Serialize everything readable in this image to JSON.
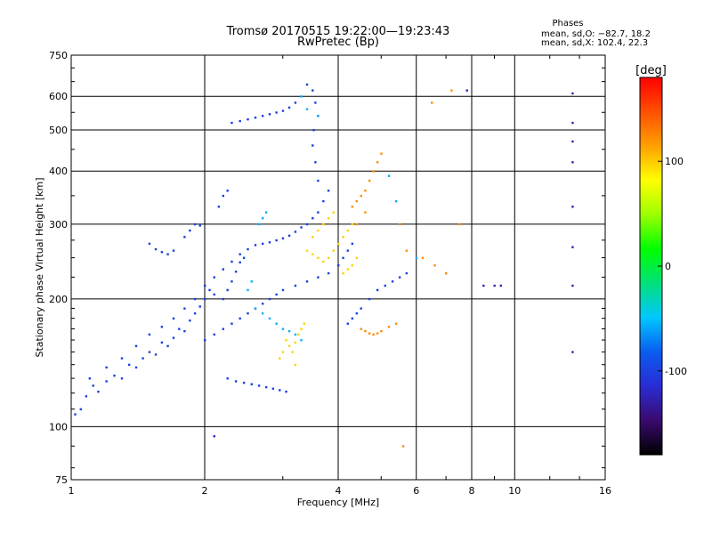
{
  "header": {
    "title": "Tromsø 20170515 19:22:00—19:23:43",
    "subtitle": "RwPretec (Bp)",
    "stats_heading": "Phases",
    "stats_o": "mean, sd,O: −82.7, 18.2",
    "stats_x": "mean, sd,X: 102.4, 22.3"
  },
  "chart_data": {
    "type": "scatter",
    "title": "Tromsø 20170515 19:22:00—19:23:43",
    "subtitle": "RwPretec (Bp)",
    "xlabel": "Frequency [MHz]",
    "ylabel": "Stationary phase Virtual Height [km]",
    "x_scale": "log",
    "y_scale": "log",
    "xlim": [
      1,
      16
    ],
    "ylim": [
      75,
      750
    ],
    "x_ticks": [
      1,
      2,
      4,
      6,
      8,
      10,
      16
    ],
    "x_tick_labels": [
      "1",
      "2",
      "4",
      "6",
      "8",
      "10",
      "16"
    ],
    "y_ticks": [
      75,
      100,
      200,
      300,
      400,
      500,
      600,
      750
    ],
    "y_tick_labels": [
      "75",
      "100",
      "200",
      "300",
      "400",
      "500",
      "600",
      "750"
    ],
    "grid": true,
    "colorbar": {
      "label": "[deg]",
      "range": [
        -180,
        180
      ],
      "ticks": [
        100,
        0,
        -100
      ],
      "tick_labels": [
        "100",
        "0",
        "-100"
      ],
      "colors": [
        "#000000",
        "#3a0a6e",
        "#2a2cd4",
        "#0a5cf0",
        "#00c8ff",
        "#00e07a",
        "#00ff00",
        "#9cff00",
        "#ffff00",
        "#ffa000",
        "#ff5000",
        "#ff0000"
      ]
    },
    "series": [
      {
        "color": "#1a3fe0",
        "values": [
          [
            1.02,
            107
          ],
          [
            1.05,
            110
          ],
          [
            1.08,
            118
          ],
          [
            1.12,
            125
          ],
          [
            1.15,
            121
          ],
          [
            1.2,
            128
          ],
          [
            1.25,
            132
          ],
          [
            1.3,
            130
          ],
          [
            1.35,
            140
          ],
          [
            1.4,
            138
          ],
          [
            1.45,
            145
          ],
          [
            1.5,
            150
          ],
          [
            1.55,
            148
          ],
          [
            1.6,
            158
          ],
          [
            1.65,
            155
          ],
          [
            1.7,
            162
          ],
          [
            1.75,
            170
          ],
          [
            1.8,
            168
          ],
          [
            1.85,
            178
          ],
          [
            1.9,
            185
          ],
          [
            1.95,
            192
          ],
          [
            2.0,
            200
          ],
          [
            2.05,
            210
          ],
          [
            2.1,
            205
          ],
          [
            1.1,
            130
          ],
          [
            1.2,
            138
          ],
          [
            1.3,
            145
          ],
          [
            1.4,
            155
          ],
          [
            1.5,
            165
          ],
          [
            1.6,
            172
          ],
          [
            1.7,
            180
          ],
          [
            1.8,
            190
          ],
          [
            1.9,
            200
          ],
          [
            2.0,
            215
          ],
          [
            2.1,
            225
          ],
          [
            2.2,
            235
          ],
          [
            2.3,
            245
          ],
          [
            2.4,
            255
          ],
          [
            2.5,
            262
          ],
          [
            2.6,
            268
          ],
          [
            2.7,
            270
          ],
          [
            2.8,
            272
          ],
          [
            2.9,
            275
          ],
          [
            3.0,
            278
          ],
          [
            3.1,
            282
          ],
          [
            3.2,
            288
          ],
          [
            3.3,
            295
          ],
          [
            3.4,
            300
          ],
          [
            3.5,
            310
          ],
          [
            3.6,
            320
          ],
          [
            3.7,
            340
          ],
          [
            3.8,
            360
          ],
          [
            3.6,
            380
          ],
          [
            3.55,
            420
          ],
          [
            3.5,
            460
          ],
          [
            3.52,
            500
          ],
          [
            3.6,
            540
          ],
          [
            3.55,
            580
          ],
          [
            3.5,
            620
          ],
          [
            3.4,
            640
          ],
          [
            2.3,
            520
          ],
          [
            2.4,
            525
          ],
          [
            2.5,
            530
          ],
          [
            2.6,
            535
          ],
          [
            2.7,
            540
          ],
          [
            2.8,
            545
          ],
          [
            2.9,
            550
          ],
          [
            3.0,
            555
          ],
          [
            3.1,
            565
          ],
          [
            3.2,
            580
          ],
          [
            2.25,
            130
          ],
          [
            2.35,
            128
          ],
          [
            2.45,
            127
          ],
          [
            2.55,
            126
          ],
          [
            2.65,
            125
          ],
          [
            2.75,
            124
          ],
          [
            2.85,
            123
          ],
          [
            2.95,
            122
          ],
          [
            3.05,
            121
          ],
          [
            1.5,
            270
          ],
          [
            1.55,
            262
          ],
          [
            1.6,
            258
          ],
          [
            1.65,
            255
          ],
          [
            1.7,
            260
          ],
          [
            1.8,
            280
          ],
          [
            1.85,
            290
          ],
          [
            1.9,
            300
          ],
          [
            1.95,
            298
          ],
          [
            2.2,
            200
          ],
          [
            2.25,
            210
          ],
          [
            2.3,
            220
          ],
          [
            2.35,
            232
          ],
          [
            2.4,
            244
          ],
          [
            2.45,
            250
          ],
          [
            2.15,
            330
          ],
          [
            2.2,
            350
          ],
          [
            2.25,
            360
          ],
          [
            4.2,
            175
          ],
          [
            4.3,
            180
          ],
          [
            4.4,
            185
          ],
          [
            4.5,
            190
          ],
          [
            4.7,
            200
          ],
          [
            4.9,
            210
          ],
          [
            5.1,
            215
          ],
          [
            5.3,
            220
          ],
          [
            5.5,
            225
          ],
          [
            5.7,
            230
          ],
          [
            2.0,
            160
          ],
          [
            2.1,
            165
          ],
          [
            2.2,
            170
          ],
          [
            2.3,
            175
          ],
          [
            2.4,
            180
          ],
          [
            2.5,
            185
          ],
          [
            2.6,
            190
          ],
          [
            2.7,
            195
          ],
          [
            2.8,
            200
          ],
          [
            2.9,
            205
          ],
          [
            3.0,
            210
          ],
          [
            3.2,
            215
          ],
          [
            3.4,
            220
          ],
          [
            3.6,
            225
          ],
          [
            3.8,
            230
          ],
          [
            4.0,
            240
          ],
          [
            4.1,
            250
          ],
          [
            4.2,
            260
          ],
          [
            4.3,
            270
          ]
        ]
      },
      {
        "color": "#00b0ff",
        "values": [
          [
            2.6,
            190
          ],
          [
            2.7,
            185
          ],
          [
            2.8,
            180
          ],
          [
            2.9,
            175
          ],
          [
            3.0,
            170
          ],
          [
            3.1,
            168
          ],
          [
            3.2,
            165
          ],
          [
            3.3,
            160
          ],
          [
            2.5,
            210
          ],
          [
            2.55,
            220
          ],
          [
            2.65,
            300
          ],
          [
            2.7,
            310
          ],
          [
            2.75,
            320
          ],
          [
            3.4,
            560
          ],
          [
            3.6,
            540
          ],
          [
            3.3,
            600
          ],
          [
            5.2,
            390
          ],
          [
            5.4,
            340
          ],
          [
            6.0,
            250
          ],
          [
            7.0,
            230
          ]
        ]
      },
      {
        "color": "#ffd200",
        "values": [
          [
            3.05,
            160
          ],
          [
            3.1,
            155
          ],
          [
            3.15,
            150
          ],
          [
            3.2,
            158
          ],
          [
            3.25,
            165
          ],
          [
            3.3,
            170
          ],
          [
            3.35,
            175
          ],
          [
            3.0,
            150
          ],
          [
            2.95,
            145
          ],
          [
            3.2,
            140
          ],
          [
            3.4,
            260
          ],
          [
            3.5,
            255
          ],
          [
            3.6,
            250
          ],
          [
            3.7,
            245
          ],
          [
            3.8,
            250
          ],
          [
            3.9,
            260
          ],
          [
            4.0,
            270
          ],
          [
            4.1,
            280
          ],
          [
            4.2,
            290
          ],
          [
            4.3,
            300
          ],
          [
            4.1,
            230
          ],
          [
            4.2,
            235
          ],
          [
            4.3,
            240
          ],
          [
            4.4,
            250
          ],
          [
            3.5,
            280
          ],
          [
            3.6,
            290
          ],
          [
            3.7,
            300
          ],
          [
            3.8,
            310
          ],
          [
            3.9,
            320
          ]
        ]
      },
      {
        "color": "#ff8c00",
        "values": [
          [
            4.5,
            170
          ],
          [
            4.6,
            168
          ],
          [
            4.7,
            166
          ],
          [
            4.8,
            165
          ],
          [
            4.9,
            166
          ],
          [
            5.0,
            168
          ],
          [
            5.2,
            172
          ],
          [
            5.4,
            175
          ],
          [
            4.3,
            330
          ],
          [
            4.4,
            340
          ],
          [
            4.5,
            350
          ],
          [
            4.6,
            360
          ],
          [
            4.7,
            380
          ],
          [
            4.8,
            400
          ],
          [
            4.9,
            420
          ],
          [
            5.0,
            440
          ],
          [
            4.4,
            300
          ],
          [
            4.6,
            320
          ],
          [
            5.5,
            300
          ],
          [
            5.7,
            260
          ],
          [
            6.2,
            250
          ],
          [
            6.6,
            240
          ],
          [
            7.0,
            230
          ],
          [
            7.2,
            620
          ],
          [
            6.5,
            580
          ],
          [
            7.5,
            300
          ],
          [
            5.6,
            90
          ]
        ]
      },
      {
        "color": "#3a1fc0",
        "values": [
          [
            13.5,
            610
          ],
          [
            13.5,
            520
          ],
          [
            13.5,
            470
          ],
          [
            13.5,
            420
          ],
          [
            13.5,
            330
          ],
          [
            13.5,
            265
          ],
          [
            13.5,
            215
          ],
          [
            13.5,
            150
          ],
          [
            8.5,
            215
          ],
          [
            9.0,
            215
          ],
          [
            9.3,
            215
          ],
          [
            2.1,
            95
          ],
          [
            7.8,
            620
          ]
        ]
      }
    ]
  }
}
